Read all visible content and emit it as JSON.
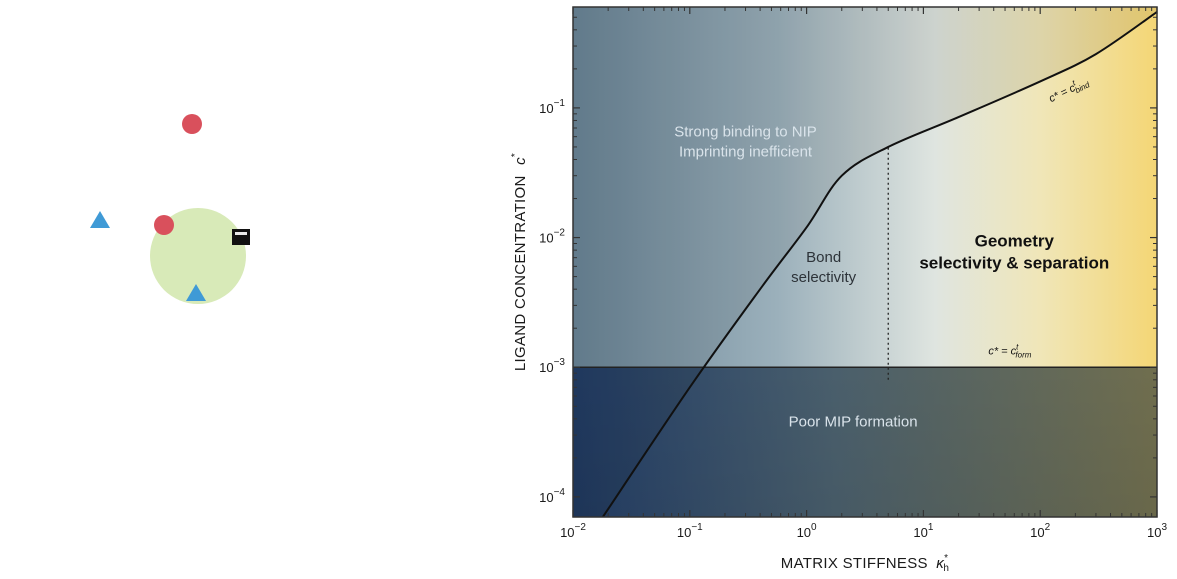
{
  "illustration": {
    "icons": [
      "red-circle-ligand-icon",
      "blue-triangle-ligand-icon",
      "black-square-ligand-icon"
    ],
    "colors": {
      "chain": "#6e7f80",
      "target": "#d8eab8",
      "circle_ligand": "#d9505c",
      "triangle_ligand": "#3f9ad6",
      "square_ligand": "#111111"
    }
  },
  "chart_data": {
    "type": "area",
    "scale": "log-log",
    "xlabel": "MATRIX STIFFNESS",
    "xlabel_symbol": "κ",
    "xlabel_sub": "h",
    "xlabel_sup": "*",
    "ylabel": "LIGAND CONCENTRATION",
    "ylabel_symbol": "c",
    "ylabel_sup": "*",
    "xlim": [
      0.01,
      1000
    ],
    "ylim": [
      7e-05,
      0.6
    ],
    "x_ticks": [
      {
        "base": "10",
        "exp": "−2"
      },
      {
        "base": "10",
        "exp": "−1"
      },
      {
        "base": "10",
        "exp": "0"
      },
      {
        "base": "10",
        "exp": "1"
      },
      {
        "base": "10",
        "exp": "2"
      },
      {
        "base": "10",
        "exp": "3"
      }
    ],
    "y_ticks": [
      {
        "base": "10",
        "exp": "−4"
      },
      {
        "base": "10",
        "exp": "−3"
      },
      {
        "base": "10",
        "exp": "−2"
      },
      {
        "base": "10",
        "exp": "−1"
      }
    ],
    "boundary_curve": {
      "x": [
        0.018,
        0.1,
        0.4,
        1,
        2,
        5,
        20,
        100,
        300,
        1000
      ],
      "y": [
        7e-05,
        0.0007,
        0.004,
        0.012,
        0.03,
        0.05,
        0.085,
        0.16,
        0.26,
        0.55
      ]
    },
    "horizontal_threshold": 0.001,
    "vertical_threshold": {
      "x": 5,
      "y_from": 0.0008,
      "y_to": 0.05
    },
    "regions": [
      {
        "lines": [
          "Strong binding to NIP",
          "Imprinting inefficient"
        ],
        "x": 0.3,
        "y": 0.06,
        "style": "light"
      },
      {
        "lines": [
          "Bond",
          "selectivity"
        ],
        "x": 1.4,
        "y": 0.0065,
        "style": "dark"
      },
      {
        "lines": [
          "Geometry",
          "selectivity & separation"
        ],
        "x": 60,
        "y": 0.0085,
        "style": "bold"
      },
      {
        "lines": [
          "Poor MIP formation"
        ],
        "x": 2.5,
        "y": 0.00035,
        "style": "light"
      }
    ],
    "curve_labels": [
      {
        "base": "c* = c",
        "sub": "bind",
        "sup": "t",
        "x": 180,
        "y": 0.13,
        "angle": -26
      },
      {
        "base": "c* = c",
        "sub": "form",
        "sup": "t",
        "x": 55,
        "y": 0.00125,
        "angle": 0
      }
    ],
    "colors": {
      "blue": "#2b4e7c",
      "grey_blue": "#8ba4b1",
      "pale": "#e3e8e2",
      "yellow": "#f4d87c",
      "line": "#111111"
    }
  }
}
